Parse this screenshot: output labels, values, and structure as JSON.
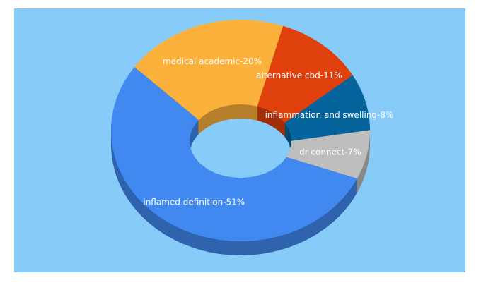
{
  "chart_data": {
    "type": "pie",
    "donut": true,
    "categories": [
      "medical academic-20%",
      "alternative cbd-11%",
      "inflammation and swelling-8%",
      "dr connect-7%",
      "inflamed definition-51%"
    ],
    "values": [
      20,
      11,
      8,
      7,
      51
    ],
    "colors": [
      "#fbb13c",
      "#e0400b",
      "#05649b",
      "#bebebe",
      "#4189f0"
    ]
  }
}
